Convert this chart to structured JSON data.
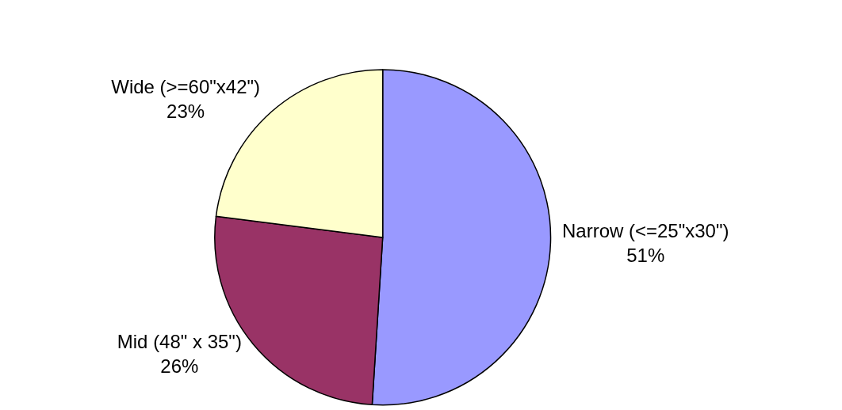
{
  "chart_data": {
    "type": "pie",
    "categories": [
      "Narrow (<=25\"x30\")",
      "Mid (48\" x 35\")",
      "Wide (>=60\"x42\")"
    ],
    "values": [
      51,
      26,
      23
    ],
    "value_labels": [
      "51%",
      "26%",
      "23%"
    ],
    "colors": [
      "#9999ff",
      "#993366",
      "#ffffcc"
    ],
    "legend": false
  }
}
